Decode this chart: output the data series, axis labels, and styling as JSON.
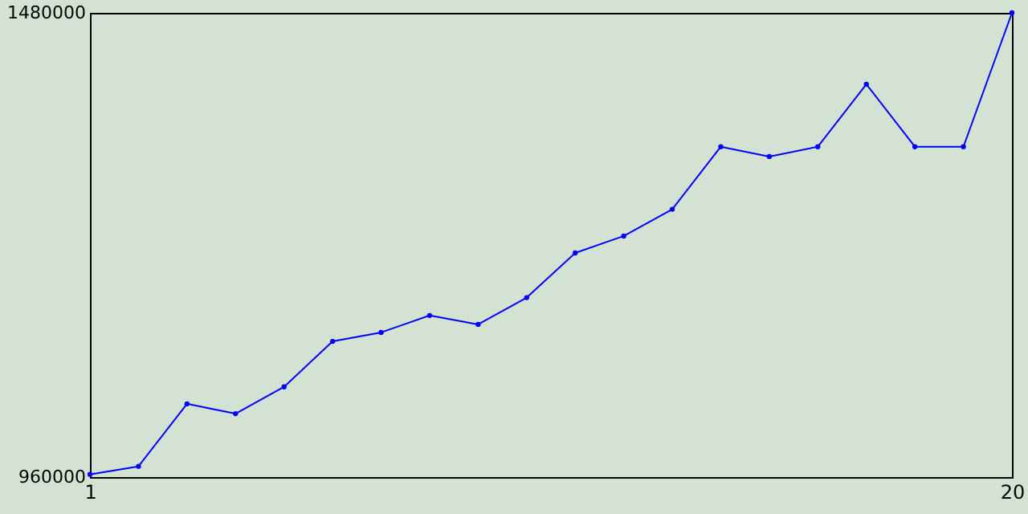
{
  "chart_data": {
    "type": "line",
    "x": [
      1,
      2,
      3,
      4,
      5,
      6,
      7,
      8,
      9,
      10,
      11,
      12,
      13,
      14,
      15,
      16,
      17,
      18,
      19,
      20
    ],
    "series": [
      {
        "color": "#0000ff",
        "values": [
          963000,
          972000,
          1042000,
          1031000,
          1061000,
          1112000,
          1122000,
          1141000,
          1131000,
          1161000,
          1211000,
          1230000,
          1260000,
          1330000,
          1319000,
          1330000,
          1400000,
          1330000,
          1330000,
          1480000
        ]
      }
    ],
    "xlim": [
      1,
      20
    ],
    "ylim": [
      960000,
      1480000
    ],
    "xticks": [
      1,
      20
    ],
    "yticks": [
      960000,
      1480000
    ],
    "grid": false,
    "marker": "circle",
    "line_style": "solid"
  }
}
